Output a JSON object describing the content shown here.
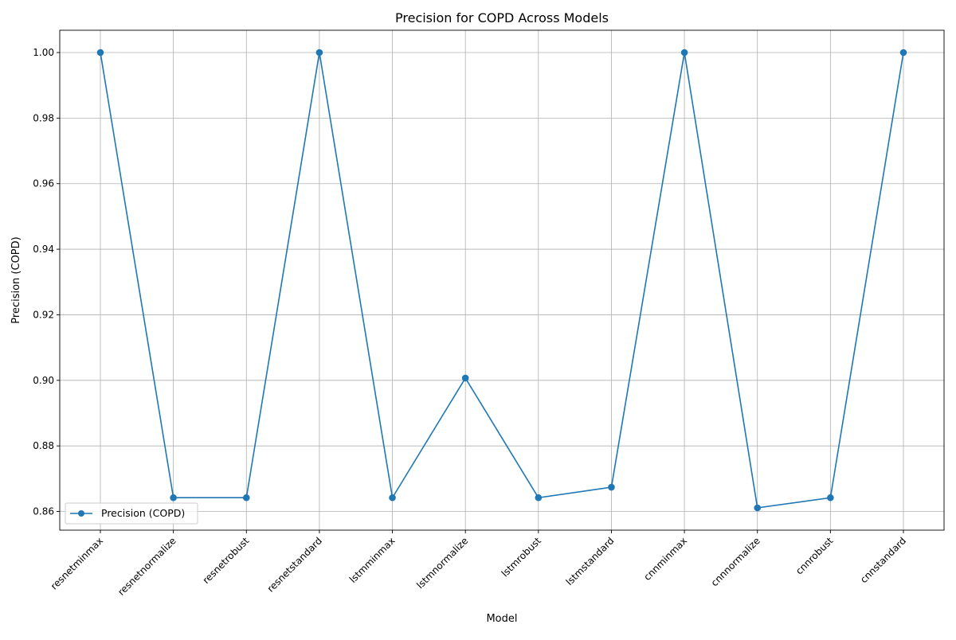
{
  "chart_data": {
    "type": "line",
    "title": "Precision for COPD Across Models",
    "xlabel": "Model",
    "ylabel": "Precision (COPD)",
    "categories": [
      "resnetminmax",
      "resnetnormalize",
      "resnetrobust",
      "resnetstandard",
      "lstmminmax",
      "lstmnormalize",
      "lstmrobust",
      "lstmstandard",
      "cnnminmax",
      "cnnnormalize",
      "cnnrobust",
      "cnnstandard"
    ],
    "series": [
      {
        "name": "Precision (COPD)",
        "values": [
          1.0,
          0.8642,
          0.8642,
          1.0,
          0.8642,
          0.9007,
          0.8642,
          0.8674,
          1.0,
          0.8611,
          0.8642,
          1.0
        ],
        "color": "#1f77b4",
        "marker": "circle"
      }
    ],
    "y_ticks": [
      "0.86",
      "0.88",
      "0.90",
      "0.92",
      "0.94",
      "0.96",
      "0.98",
      "1.00"
    ],
    "ylim": [
      0.8543,
      1.0068
    ],
    "grid": true,
    "legend_position": "lower-left",
    "x_tick_rotation": 45
  }
}
